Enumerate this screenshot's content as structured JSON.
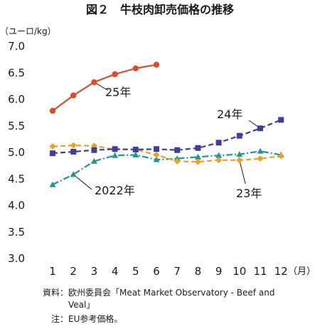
{
  "chart_data": {
    "type": "line",
    "title": "図２　牛枝肉卸売価格の推移",
    "unit_label": "（ユーロ/kg）",
    "x_unit_label": "（月）",
    "categories": [
      "1",
      "2",
      "3",
      "4",
      "5",
      "6",
      "7",
      "8",
      "9",
      "10",
      "11",
      "12"
    ],
    "ylim": [
      3.0,
      7.0
    ],
    "yticks": [
      "3.0",
      "3.5",
      "4.0",
      "4.5",
      "5.0",
      "5.5",
      "6.0",
      "6.5",
      "7.0"
    ],
    "grid": false,
    "legend": "inline labels",
    "series": [
      {
        "name": "2022年",
        "color": "#1a9a90",
        "dash": "dashdot",
        "marker": "triangle",
        "values": [
          4.38,
          4.57,
          4.82,
          4.93,
          4.94,
          4.85,
          4.87,
          4.9,
          4.93,
          4.95,
          5.01,
          4.94
        ]
      },
      {
        "name": "23年",
        "color": "#f0a11c",
        "dash": "dashed",
        "marker": "diamond",
        "values": [
          5.1,
          5.12,
          5.11,
          5.04,
          5.04,
          4.94,
          4.82,
          4.81,
          4.84,
          4.84,
          4.87,
          4.92
        ]
      },
      {
        "name": "24年",
        "color": "#3c3f9e",
        "dash": "dashed",
        "marker": "square",
        "values": [
          4.97,
          5.0,
          5.03,
          5.05,
          5.04,
          5.05,
          5.03,
          5.07,
          5.17,
          5.3,
          5.44,
          5.6
        ]
      },
      {
        "name": "25年",
        "color": "#e04a2a",
        "dash": "solid",
        "marker": "circle",
        "values": [
          5.77,
          6.06,
          6.31,
          6.46,
          6.57,
          6.64,
          null,
          null,
          null,
          null,
          null,
          null
        ]
      }
    ]
  },
  "notes": {
    "source_line1": "資料：欧州委員会「Meat Market Observatory - Beef and",
    "source_line2": "Veal」",
    "note": "注：EU参考価格。"
  }
}
